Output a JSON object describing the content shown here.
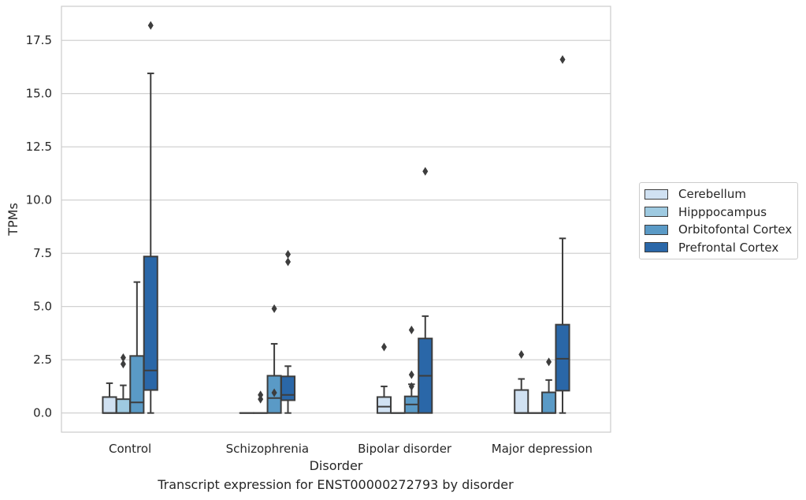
{
  "caption": "Transcript expression for ENST00000272793 by disorder",
  "chart_data": {
    "type": "box",
    "title": "",
    "xlabel": "Disorder",
    "ylabel": "TPMs",
    "ylim": [
      -0.9,
      19.1
    ],
    "yticks": [
      "0.0",
      "2.5",
      "5.0",
      "7.5",
      "10.0",
      "12.5",
      "15.0",
      "17.5"
    ],
    "categories": [
      "Control",
      "Schizophrenia",
      "Bipolar disorder",
      "Major depression"
    ],
    "grid": "horizontal",
    "legend_position": "right",
    "series": [
      {
        "name": "Cerebellum",
        "color": "#d0e1f2",
        "boxes": [
          {
            "min": 0,
            "q1": 0,
            "median": 0,
            "q3": 0.75,
            "max": 1.4,
            "outliers": []
          },
          {
            "min": 0,
            "q1": 0,
            "median": 0,
            "q3": 0,
            "max": 0,
            "outliers": []
          },
          {
            "min": 0,
            "q1": 0,
            "median": 0.3,
            "q3": 0.75,
            "max": 1.25,
            "outliers": [
              3.1
            ]
          },
          {
            "min": 0,
            "q1": 0,
            "median": 0,
            "q3": 1.08,
            "max": 1.6,
            "outliers": [
              2.75
            ]
          }
        ]
      },
      {
        "name": "Hipppocampus",
        "color": "#9ecae1",
        "boxes": [
          {
            "min": 0,
            "q1": 0,
            "median": 0,
            "q3": 0.65,
            "max": 1.3,
            "outliers": [
              2.3,
              2.6
            ]
          },
          {
            "min": 0,
            "q1": 0,
            "median": 0,
            "q3": 0,
            "max": 0,
            "outliers": [
              0.65,
              0.85
            ]
          },
          {
            "min": 0,
            "q1": 0,
            "median": 0,
            "q3": 0,
            "max": 0,
            "outliers": []
          },
          {
            "min": 0,
            "q1": 0,
            "median": 0,
            "q3": 0,
            "max": 0,
            "outliers": []
          }
        ]
      },
      {
        "name": "Orbitofontal Cortex",
        "color": "#5a9ac6",
        "boxes": [
          {
            "min": 0,
            "q1": 0,
            "median": 0.5,
            "q3": 2.68,
            "max": 6.15,
            "outliers": []
          },
          {
            "min": 0,
            "q1": 0,
            "median": 0.7,
            "q3": 1.75,
            "max": 3.25,
            "outliers": [
              0.95,
              4.9
            ]
          },
          {
            "min": 0,
            "q1": 0,
            "median": 0.4,
            "q3": 0.78,
            "max": 1.35,
            "outliers": [
              1.25,
              1.8,
              3.9
            ]
          },
          {
            "min": 0,
            "q1": 0,
            "median": 0,
            "q3": 0.97,
            "max": 1.55,
            "outliers": [
              2.4
            ]
          }
        ]
      },
      {
        "name": "Prefrontal Cortex",
        "color": "#2a67a8",
        "boxes": [
          {
            "min": 0,
            "q1": 1.08,
            "median": 2.0,
            "q3": 7.35,
            "max": 15.95,
            "outliers": [
              18.2
            ]
          },
          {
            "min": 0,
            "q1": 0.6,
            "median": 0.85,
            "q3": 1.72,
            "max": 2.2,
            "outliers": [
              7.1,
              7.45
            ]
          },
          {
            "min": 0,
            "q1": 0,
            "median": 1.75,
            "q3": 3.5,
            "max": 4.55,
            "outliers": [
              11.35
            ]
          },
          {
            "min": 0,
            "q1": 1.05,
            "median": 2.55,
            "q3": 4.15,
            "max": 8.2,
            "outliers": [
              16.6
            ]
          }
        ]
      }
    ]
  }
}
